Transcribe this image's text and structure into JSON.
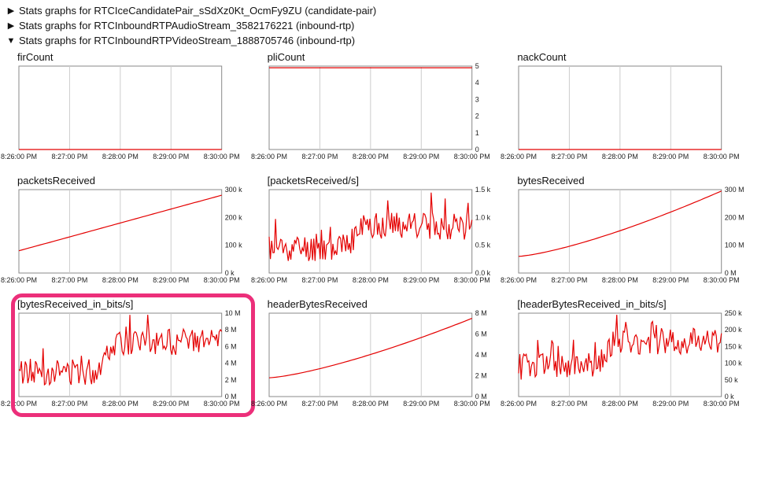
{
  "sections": [
    {
      "expanded": false,
      "label": "Stats graphs for RTCIceCandidatePair_sSdXz0Kt_OcmFy9ZU (candidate-pair)"
    },
    {
      "expanded": false,
      "label": "Stats graphs for RTCInboundRTPAudioStream_3582176221 (inbound-rtp)"
    },
    {
      "expanded": true,
      "label": "Stats graphs for RTCInboundRTPVideoStream_1888705746 (inbound-rtp)"
    }
  ],
  "glyphs": {
    "closed": "▶",
    "open": "▼"
  },
  "style": {
    "plot_inner_w": 240,
    "plot_inner_h": 100,
    "line_color": "#e40000",
    "grid_color": "#cccccc",
    "border_color": "#888888",
    "bg_color": "#ffffff",
    "axis_font_size": 9,
    "axis_font_color": "#222222",
    "highlight_color": "#ec2f7a",
    "x_ticks": [
      "8:26:00 PM",
      "8:27:00 PM",
      "8:28:00 PM",
      "8:29:00 PM",
      "8:30:00 PM"
    ]
  },
  "charts": [
    {
      "id": "firCount",
      "title": "firCount",
      "y_ticks": [],
      "y_top": 1,
      "y_bot": 0,
      "shape": "flat0",
      "highlighted": false
    },
    {
      "id": "pliCount",
      "title": "pliCount",
      "y_ticks": [
        "5",
        "4",
        "3",
        "2",
        "1",
        "0"
      ],
      "y_top": 5,
      "y_bot": 0,
      "shape": "flatNearTop",
      "highlighted": false
    },
    {
      "id": "nackCount",
      "title": "nackCount",
      "y_ticks": [],
      "y_top": 1,
      "y_bot": 0,
      "shape": "flat0",
      "highlighted": false
    },
    {
      "id": "packetsReceived",
      "title": "packetsReceived",
      "y_ticks": [
        "300 k",
        "200 k",
        "100 k",
        "0 k"
      ],
      "y_top": 300,
      "y_bot": 0,
      "shape": "rampSlow",
      "start": 80,
      "end": 280,
      "highlighted": false
    },
    {
      "id": "packetsReceivedPerS",
      "title": "[packetsReceived/s]",
      "y_ticks": [
        "1.5 k",
        "1.0 k",
        "0.5 k",
        "0.0 k"
      ],
      "y_top": 1.5,
      "y_bot": 0,
      "shape": "noisyStep",
      "low": 0.45,
      "high": 0.85,
      "jitter": 0.25,
      "highlighted": false
    },
    {
      "id": "bytesReceived",
      "title": "bytesReceived",
      "y_ticks": [
        "300 M",
        "200 M",
        "100 M",
        "0 M"
      ],
      "y_top": 300,
      "y_bot": 0,
      "shape": "rampCurve",
      "start": 60,
      "end": 295,
      "highlighted": false
    },
    {
      "id": "bytesReceivedBits",
      "title": "[bytesReceived_in_bits/s]",
      "y_ticks": [
        "10 M",
        "8 M",
        "6 M",
        "4 M",
        "2 M",
        "0 M"
      ],
      "y_top": 10,
      "y_bot": 0,
      "shape": "noisyStep",
      "low": 3.0,
      "high": 6.5,
      "jitter": 1.6,
      "highlighted": true
    },
    {
      "id": "headerBytesReceived",
      "title": "headerBytesReceived",
      "y_ticks": [
        "8 M",
        "6 M",
        "4 M",
        "2 M",
        "0 M"
      ],
      "y_top": 8,
      "y_bot": 0,
      "shape": "rampCurve",
      "start": 1.8,
      "end": 7.5,
      "highlighted": false
    },
    {
      "id": "headerBytesReceivedBits",
      "title": "[headerBytesReceived_in_bits/s]",
      "y_ticks": [
        "250 k",
        "200 k",
        "150 k",
        "100 k",
        "50 k",
        "0 k"
      ],
      "y_top": 250,
      "y_bot": 0,
      "shape": "noisyStep",
      "low": 90,
      "high": 165,
      "jitter": 40,
      "highlighted": false
    }
  ]
}
